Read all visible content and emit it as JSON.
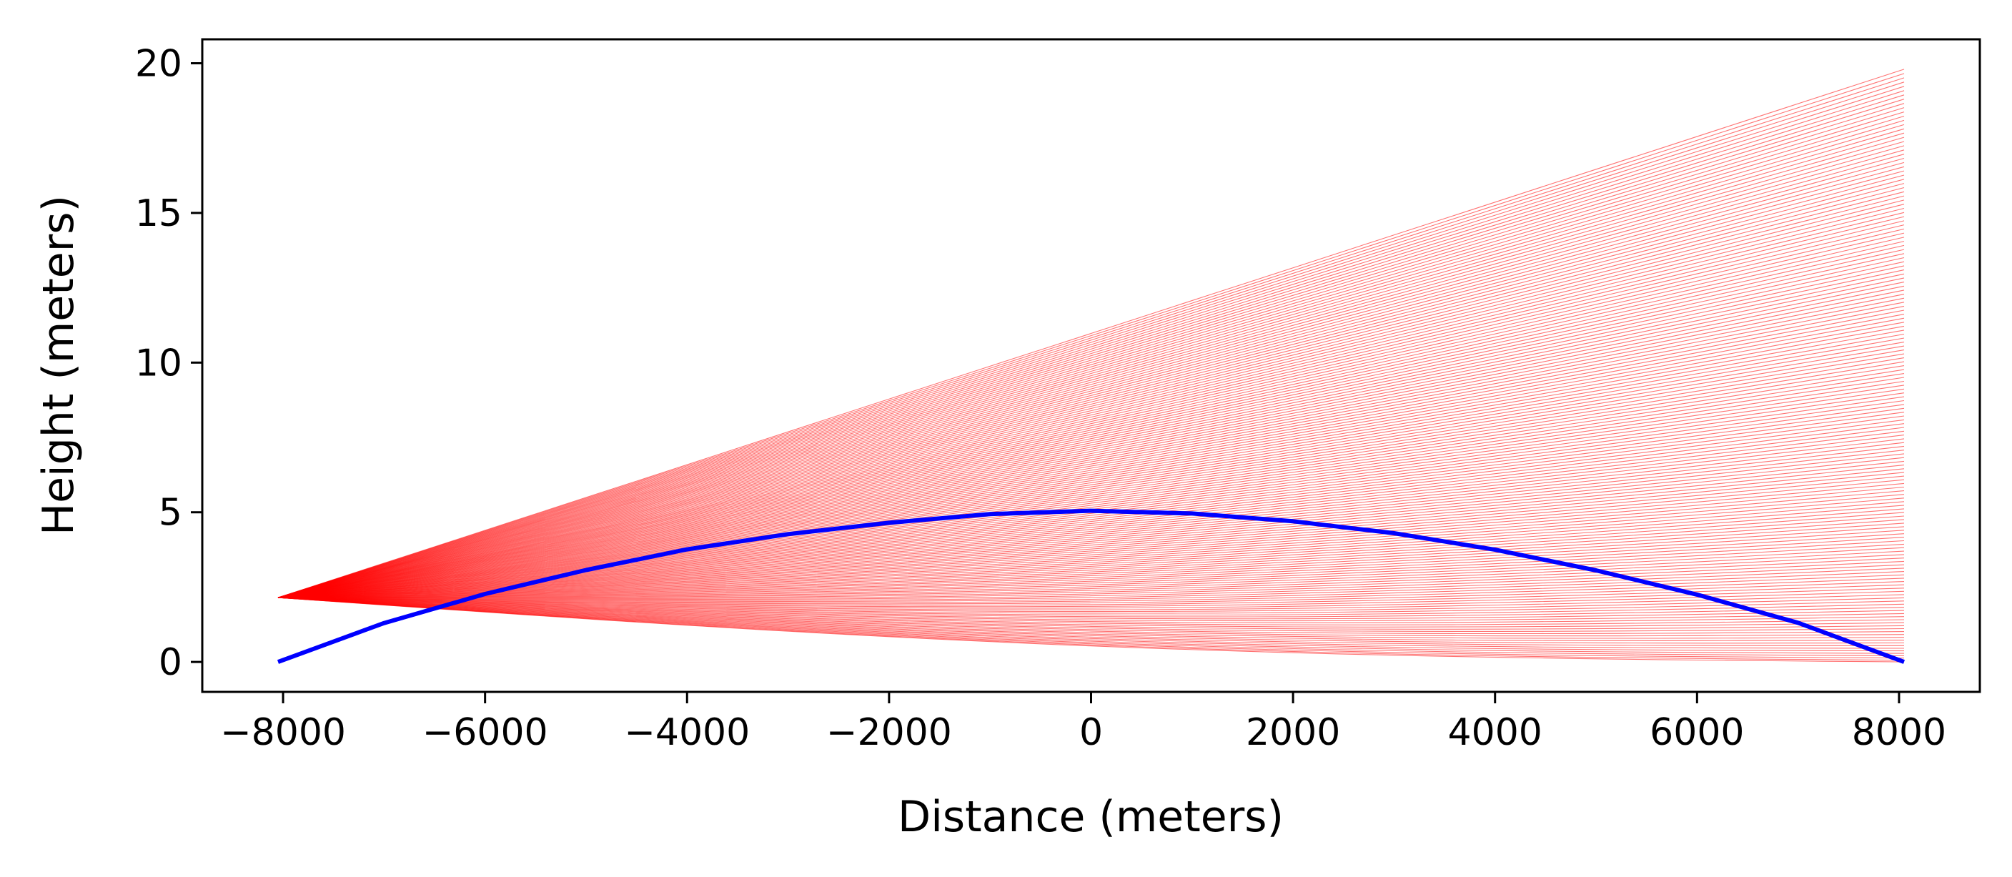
{
  "chart_data": {
    "type": "line",
    "title": "",
    "xlabel": "Distance (meters)",
    "ylabel": "Height (meters)",
    "xlim": [
      -8800,
      8800
    ],
    "ylim": [
      -1,
      20.8
    ],
    "xticks": [
      -8000,
      -6000,
      -4000,
      -2000,
      0,
      2000,
      4000,
      6000,
      8000
    ],
    "xtick_labels": [
      "−8000",
      "−6000",
      "−4000",
      "−2000",
      "0",
      "2000",
      "4000",
      "6000",
      "8000"
    ],
    "yticks": [
      0,
      5,
      10,
      15,
      20
    ],
    "ytick_labels": [
      "0",
      "5",
      "10",
      "15",
      "20"
    ],
    "grid": false,
    "series": [
      {
        "role": "terrain",
        "color": "#0000ff",
        "x": [
          -8050,
          -7000,
          -6000,
          -5000,
          -4000,
          -3000,
          -2000,
          -1000,
          0,
          1000,
          2000,
          3000,
          4000,
          5000,
          6000,
          7000,
          8050
        ],
        "y": [
          0,
          1.3,
          2.27,
          3.07,
          3.76,
          4.27,
          4.65,
          4.94,
          5.05,
          4.96,
          4.7,
          4.3,
          3.75,
          3.06,
          2.25,
          1.31,
          0
        ]
      },
      {
        "role": "ray-fan",
        "color": "#ff0000",
        "line_count": 160,
        "origin": [
          -8050,
          2.15
        ],
        "x_end": 8050,
        "end_heights_range": [
          0,
          19.8
        ],
        "note_pattern": "rays fan from origin to end heights"
      }
    ]
  }
}
